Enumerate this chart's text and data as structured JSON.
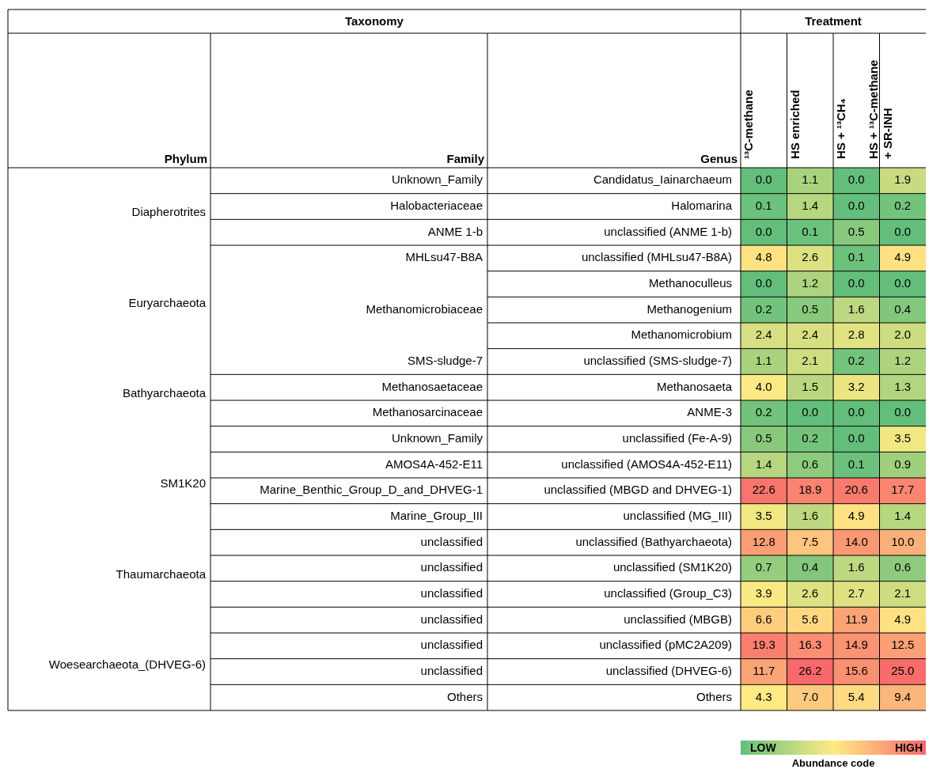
{
  "chart_data": {
    "type": "heatmap",
    "categories": [
      "¹³C-methane",
      "HS enriched",
      "HS + ¹³CH₄",
      "HS + ¹³C-methane + SR-INH"
    ],
    "y_categories": [
      "Candidatus_Iainarchaeum",
      "Halomarina",
      "unclassified (ANME 1-b)",
      "unclassified (MHLsu47-B8A)",
      "Methanoculleus",
      "Methanogenium",
      "Methanomicrobium",
      "unclassified (SMS-sludge-7)",
      "Methanosaeta",
      "ANME-3",
      "unclassified (Fe-A-9)",
      "unclassified (AMOS4A-452-E11)",
      "unclassified (MBGD and DHVEG-1)",
      "unclassified (MG_III)",
      "unclassified (Bathyarchaeota)",
      "unclassified (SM1K20)",
      "unclassified (Group_C3)",
      "unclassified (MBGB)",
      "unclassified (pMC2A209)",
      "unclassified (DHVEG-6)",
      "Others"
    ],
    "y2_categories": [
      "Unknown_Family",
      "Halobacteriaceae",
      "ANME 1-b",
      "MHLsu47-B8A",
      null,
      "Methanomicrobiaceae",
      null,
      "SMS-sludge-7",
      "Methanosaetaceae",
      "Methanosarcinaceae",
      "Unknown_Family",
      "AMOS4A-452-E11",
      "Marine_Benthic_Group_D_and_DHVEG-1",
      "Marine_Group_III",
      "unclassified",
      "unclassified",
      "unclassified",
      "unclassified",
      "unclassified",
      "unclassified",
      "Others"
    ],
    "cells": [
      [
        0.0,
        1.1,
        0.0,
        1.9
      ],
      [
        0.1,
        1.4,
        0.0,
        0.2
      ],
      [
        0.0,
        0.1,
        0.5,
        0.0
      ],
      [
        4.8,
        2.6,
        0.1,
        4.9
      ],
      [
        0.0,
        1.2,
        0.0,
        0.0
      ],
      [
        0.2,
        0.5,
        1.6,
        0.4
      ],
      [
        2.4,
        2.4,
        2.8,
        2.0
      ],
      [
        1.1,
        2.1,
        0.2,
        1.2
      ],
      [
        4.0,
        1.5,
        3.2,
        1.3
      ],
      [
        0.2,
        0.0,
        0.0,
        0.0
      ],
      [
        0.5,
        0.2,
        0.0,
        3.5
      ],
      [
        1.4,
        0.6,
        0.1,
        0.9
      ],
      [
        22.6,
        18.9,
        20.6,
        17.7
      ],
      [
        3.5,
        1.6,
        4.9,
        1.4
      ],
      [
        12.8,
        7.5,
        14.0,
        10.0
      ],
      [
        0.7,
        0.4,
        1.6,
        0.6
      ],
      [
        3.9,
        2.6,
        2.7,
        2.1
      ],
      [
        6.6,
        5.6,
        11.9,
        4.9
      ],
      [
        19.3,
        16.3,
        14.9,
        12.5
      ],
      [
        11.7,
        26.2,
        15.6,
        25.0
      ],
      [
        4.3,
        7.0,
        5.4,
        9.4
      ]
    ],
    "cell_labels": [
      [
        "0.0",
        "1.1",
        "0.0",
        "1.9"
      ],
      [
        "0.1",
        "1.4",
        "0.0",
        "0.2"
      ],
      [
        "0.0",
        "0.1",
        "0.5",
        "0.0"
      ],
      [
        "4.8",
        "2.6",
        "0.1",
        "4.9"
      ],
      [
        "0.0",
        "1.2",
        "0.0",
        "0.0"
      ],
      [
        "0.2",
        "0.5",
        "1.6",
        "0.4"
      ],
      [
        "2.4",
        "2.4",
        "2.8",
        "2.0"
      ],
      [
        "1.1",
        "2.1",
        "0.2",
        "1.2"
      ],
      [
        "4.0",
        "1.5",
        "3.2",
        "1.3"
      ],
      [
        "0.2",
        "0.0",
        "0.0",
        "0.0"
      ],
      [
        "0.5",
        "0.2",
        "0.0",
        "3.5"
      ],
      [
        "1.4",
        "0.6",
        "0.1",
        "0.9"
      ],
      [
        "22.6",
        "18.9",
        "20.6",
        "17.7"
      ],
      [
        "3.5",
        "1.6",
        "4.9",
        "1.4"
      ],
      [
        "12.8",
        "7.5",
        "14.0",
        "10.0"
      ],
      [
        "0.7",
        "0.4",
        "1.6",
        "0.6"
      ],
      [
        "3.9",
        "2.6",
        "2.7",
        "2.1"
      ],
      [
        "6.6",
        "5.6",
        "11.9",
        "4.9"
      ],
      [
        "19.3",
        "16.3",
        "14.9",
        "12.5"
      ],
      [
        "11.7",
        "26.2",
        "15.6",
        "25.0"
      ],
      [
        "4.3",
        "7.0",
        "5.4",
        "9.4"
      ]
    ],
    "clabel": "Abundance code",
    "annotations": [
      "Taxonomy",
      "Treatment",
      "Phylum",
      "Family",
      "Genus",
      "LOW",
      "HIGH",
      "Diapherotrites",
      "Euryarchaeota",
      "Bathyarchaeota",
      "SM1K20",
      "Thaumarchaeota",
      "Woesearchaeota_(DHVEG-6)"
    ]
  }
}
